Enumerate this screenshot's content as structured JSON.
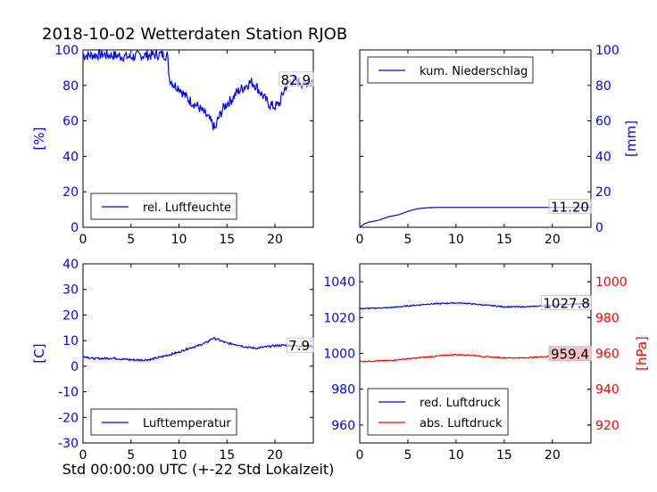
{
  "title": "2018-10-02 Wetterdaten Station RJOB",
  "xlabel_bottom": "Std 00:00:00 UTC (+-22 Std Lokalzeit)",
  "colors": {
    "blue": "#0000ff",
    "red": "#ff0000",
    "black": "#000000"
  },
  "chart_data": [
    {
      "type": "line",
      "panel": "top-left",
      "ylabel": "[%]",
      "xlim": [
        0,
        24
      ],
      "ylim": [
        0,
        100
      ],
      "xticks": [
        0,
        5,
        10,
        15,
        20
      ],
      "yticks": [
        0,
        20,
        40,
        60,
        80,
        100
      ],
      "legend_loc": "lower-left",
      "last_value_label": "82.9",
      "series": [
        {
          "name": "rel. Luftfeuchte",
          "color": "#0000ff",
          "noise": 3,
          "points": [
            [
              0,
              97
            ],
            [
              1,
              97
            ],
            [
              2,
              97.5
            ],
            [
              3,
              97
            ],
            [
              4,
              96.5
            ],
            [
              5,
              96
            ],
            [
              6,
              97
            ],
            [
              7,
              97
            ],
            [
              8,
              97.5
            ],
            [
              8.8,
              97
            ],
            [
              9,
              84
            ],
            [
              9.5,
              80
            ],
            [
              10,
              79
            ],
            [
              10.5,
              75
            ],
            [
              11,
              72
            ],
            [
              11.5,
              70
            ],
            [
              12,
              68
            ],
            [
              12.5,
              65
            ],
            [
              13,
              62
            ],
            [
              13.5,
              58
            ],
            [
              13.8,
              55
            ],
            [
              14,
              60
            ],
            [
              14.5,
              66
            ],
            [
              15,
              70
            ],
            [
              15.5,
              72
            ],
            [
              16,
              76
            ],
            [
              16.5,
              78
            ],
            [
              17,
              80
            ],
            [
              17.5,
              82
            ],
            [
              18,
              80
            ],
            [
              18.5,
              76
            ],
            [
              19,
              72
            ],
            [
              19.5,
              69
            ],
            [
              20,
              68
            ],
            [
              20.5,
              70
            ],
            [
              21,
              78
            ],
            [
              21.5,
              82
            ],
            [
              22,
              83
            ],
            [
              22.5,
              82
            ],
            [
              23,
              81
            ],
            [
              24,
              83
            ]
          ]
        }
      ]
    },
    {
      "type": "line",
      "panel": "top-right",
      "ylabel": "[mm]",
      "xlim": [
        0,
        24
      ],
      "ylim": [
        0,
        100
      ],
      "xticks": [
        0,
        5,
        10,
        15,
        20
      ],
      "yticks": [
        0,
        20,
        40,
        60,
        80,
        100
      ],
      "yaxis_side": "right",
      "legend_loc": "upper-left",
      "last_value_label": "11.20",
      "series": [
        {
          "name": "kum. Niederschlag",
          "color": "#0000ff",
          "noise": 0,
          "points": [
            [
              0,
              0
            ],
            [
              0.5,
              2
            ],
            [
              1,
              3
            ],
            [
              2,
              4
            ],
            [
              3,
              6
            ],
            [
              4,
              7
            ],
            [
              5,
              9
            ],
            [
              6,
              10.5
            ],
            [
              7,
              11
            ],
            [
              8,
              11.2
            ],
            [
              10,
              11.2
            ],
            [
              15,
              11.2
            ],
            [
              20,
              11.2
            ],
            [
              24,
              11.2
            ]
          ]
        }
      ]
    },
    {
      "type": "line",
      "panel": "bottom-left",
      "ylabel": "[C]",
      "xlim": [
        0,
        24
      ],
      "ylim": [
        -30,
        40
      ],
      "xticks": [
        0,
        5,
        10,
        15,
        20
      ],
      "yticks": [
        -30,
        -20,
        -10,
        0,
        10,
        20,
        30,
        40
      ],
      "legend_loc": "lower-left",
      "last_value_label": "7.9",
      "series": [
        {
          "name": "Lufttemperatur",
          "color": "#0000ff",
          "noise": 0.4,
          "points": [
            [
              0,
              4
            ],
            [
              1,
              3
            ],
            [
              2,
              3
            ],
            [
              3,
              3.2
            ],
            [
              4,
              2.8
            ],
            [
              5,
              2.5
            ],
            [
              6,
              2.4
            ],
            [
              7,
              2.6
            ],
            [
              8,
              3.5
            ],
            [
              9,
              4.5
            ],
            [
              10,
              5.5
            ],
            [
              11,
              7
            ],
            [
              12,
              8
            ],
            [
              13,
              9.5
            ],
            [
              13.5,
              11
            ],
            [
              14,
              10.5
            ],
            [
              15,
              9
            ],
            [
              16,
              8.5
            ],
            [
              17,
              7.5
            ],
            [
              18,
              7
            ],
            [
              19,
              7.5
            ],
            [
              20,
              8
            ],
            [
              21,
              8.2
            ],
            [
              22,
              8
            ],
            [
              23,
              7.9
            ],
            [
              24,
              7.9
            ]
          ]
        }
      ]
    },
    {
      "type": "line",
      "panel": "bottom-right",
      "xlim": [
        0,
        24
      ],
      "ylim": [
        950,
        1050
      ],
      "xticks": [
        0,
        5,
        10,
        15,
        20
      ],
      "yticks": [
        960,
        980,
        1000,
        1020,
        1040
      ],
      "y2label": "[hPa]",
      "y2lim": [
        910,
        1010
      ],
      "y2ticks": [
        920,
        940,
        960,
        980,
        1000
      ],
      "legend_loc": "lower-left",
      "last_value_labels": [
        "1027.8",
        "959.4"
      ],
      "series": [
        {
          "name": "red. Luftdruck",
          "color": "#0000ff",
          "axis": "left",
          "noise": 0.3,
          "points": [
            [
              0,
              1025
            ],
            [
              3,
              1025.5
            ],
            [
              5,
              1026.5
            ],
            [
              7,
              1027.5
            ],
            [
              9,
              1028
            ],
            [
              10,
              1028.2
            ],
            [
              11,
              1028
            ],
            [
              12,
              1027.5
            ],
            [
              13,
              1027
            ],
            [
              15,
              1026
            ],
            [
              17,
              1026
            ],
            [
              18,
              1026.2
            ],
            [
              20,
              1027
            ],
            [
              22,
              1027.5
            ],
            [
              24,
              1027.8
            ]
          ]
        },
        {
          "name": "abs. Luftdruck",
          "color": "#ff0000",
          "axis": "right",
          "noise": 0.3,
          "points": [
            [
              0,
              955.5
            ],
            [
              3,
              956
            ],
            [
              5,
              957
            ],
            [
              7,
              958
            ],
            [
              9,
              959
            ],
            [
              10,
              959.3
            ],
            [
              11,
              959.2
            ],
            [
              12,
              958.8
            ],
            [
              13,
              958.2
            ],
            [
              15,
              957.5
            ],
            [
              17,
              957.5
            ],
            [
              18,
              957.8
            ],
            [
              20,
              958.5
            ],
            [
              22,
              959
            ],
            [
              24,
              959.4
            ]
          ]
        }
      ]
    }
  ]
}
